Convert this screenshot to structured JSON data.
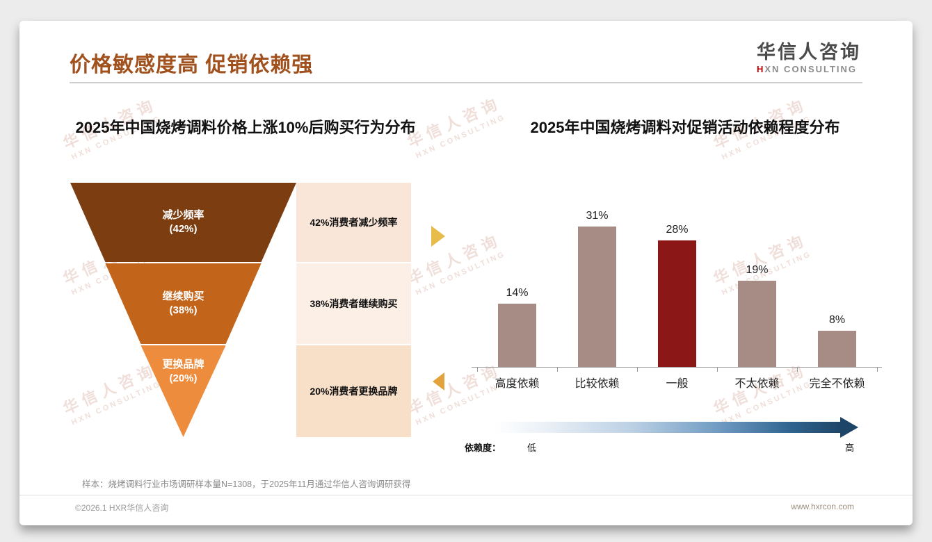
{
  "page": {
    "title": "价格敏感度高 促销依赖强",
    "footnote": "样本：烧烤调料行业市场调研样本量N=1308，于2025年11月通过华信人咨询调研获得",
    "footer_left": "©2026.1 HXR华信人咨询",
    "footer_right": "www.hxrcon.com"
  },
  "logo": {
    "cn": "华信人咨询",
    "en_red": "H",
    "en_rest": "XN CONSULTING"
  },
  "watermark": {
    "line1": "华信人咨询",
    "line2": "HXN CONSULTING"
  },
  "colors": {
    "title_accent": "#A1511E",
    "highlight_bar": "#8C1717",
    "normal_bar": "#A68C85",
    "arrow_gold": "#E7BC4B",
    "gradient_dark_blue": "#1D4568"
  },
  "chart_data": [
    {
      "type": "funnel",
      "title": "2025年中国烧烤调料价格上涨10%后购买行为分布",
      "levels": [
        {
          "label": "减少频率",
          "value_label": "(42%)",
          "value": 42,
          "annotation": "42%消费者减少频率",
          "color": "#7C3E11"
        },
        {
          "label": "继续购买",
          "value_label": "(38%)",
          "value": 38,
          "annotation": "38%消费者继续购买",
          "color": "#C2641A"
        },
        {
          "label": "更换品牌",
          "value_label": "(20%)",
          "value": 20,
          "annotation": "20%消费者更换品牌",
          "color": "#EC8C3C"
        }
      ]
    },
    {
      "type": "bar",
      "title": "2025年中国烧烤调料对促销活动依赖程度分布",
      "categories": [
        "高度依赖",
        "比较依赖",
        "一般",
        "不太依赖",
        "完全不依赖"
      ],
      "values": [
        14,
        31,
        28,
        19,
        8
      ],
      "value_labels": [
        "14%",
        "31%",
        "28%",
        "19%",
        "8%"
      ],
      "bar_colors": [
        "#A68C85",
        "#A68C85",
        "#8C1717",
        "#A68C85",
        "#A68C85"
      ],
      "ylim": [
        0,
        35
      ],
      "grid": false,
      "legend_axis": {
        "label": "依赖度：",
        "low": "低",
        "high": "高"
      }
    }
  ]
}
